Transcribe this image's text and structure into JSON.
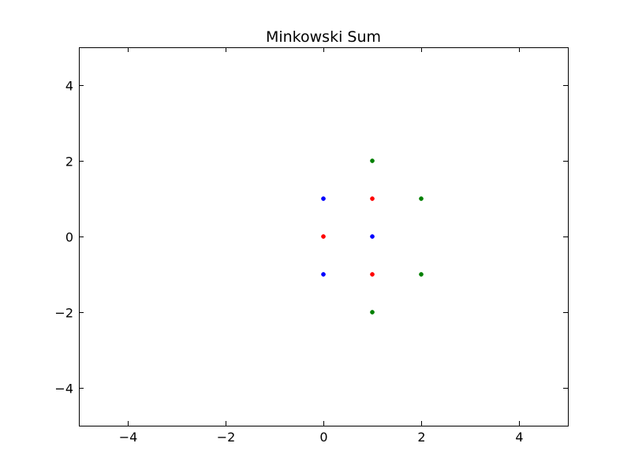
{
  "chart_data": {
    "type": "scatter",
    "title": "Minkowski Sum",
    "xlabel": "",
    "ylabel": "",
    "xlim": [
      -5,
      5
    ],
    "ylim": [
      -5,
      5
    ],
    "xticks": [
      -4,
      -2,
      0,
      2,
      4
    ],
    "yticks": [
      -4,
      -2,
      0,
      2,
      4
    ],
    "xtick_labels": [
      "−4",
      "−2",
      "0",
      "2",
      "4"
    ],
    "ytick_labels": [
      "−4",
      "−2",
      "0",
      "2",
      "4"
    ],
    "grid": false,
    "series": [
      {
        "color": "#0000ff",
        "points": [
          [
            0,
            1
          ],
          [
            0,
            -1
          ],
          [
            1,
            0
          ]
        ]
      },
      {
        "color": "#ff0000",
        "points": [
          [
            0,
            0
          ],
          [
            1,
            1
          ],
          [
            1,
            -1
          ]
        ]
      },
      {
        "color": "#008000",
        "points": [
          [
            1,
            2
          ],
          [
            2,
            1
          ],
          [
            2,
            -1
          ],
          [
            1,
            -2
          ]
        ]
      }
    ]
  }
}
